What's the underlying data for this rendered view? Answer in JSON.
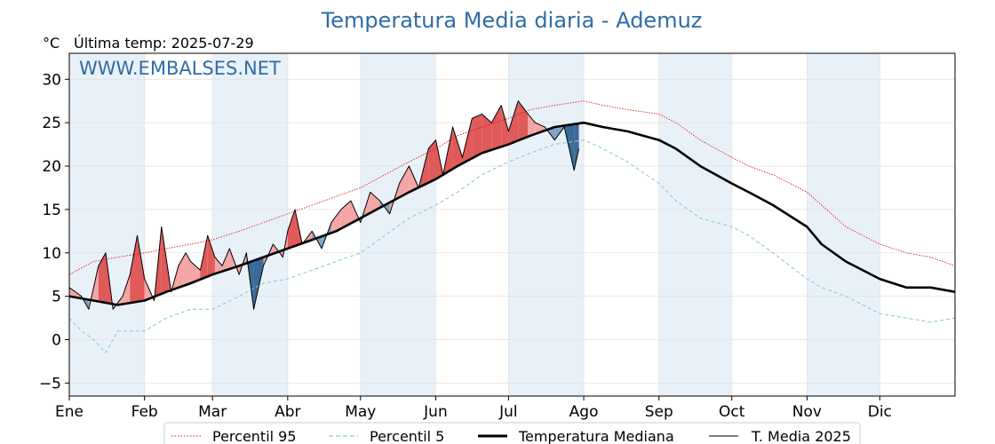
{
  "chart_data": {
    "type": "line",
    "title": "Temperatura Media diaria - Ademuz",
    "unit_label": "°C",
    "subtitle": "Última temp: 2025-07-29",
    "watermark": "WWW.EMBALSES.NET",
    "x_tick_labels": [
      "Ene",
      "Feb",
      "Mar",
      "Abr",
      "May",
      "Jun",
      "Jul",
      "Ago",
      "Sep",
      "Oct",
      "Nov",
      "Dic"
    ],
    "x_tick_days": [
      0,
      31,
      59,
      90,
      120,
      151,
      181,
      212,
      243,
      273,
      304,
      334
    ],
    "x_range_days": [
      0,
      365
    ],
    "y_ticks": [
      -5,
      0,
      5,
      10,
      15,
      20,
      25,
      30
    ],
    "ylim": [
      -6.5,
      33
    ],
    "shaded_months": [
      "Ene",
      "Mar",
      "May",
      "Jul",
      "Sep",
      "Nov"
    ],
    "grid": true,
    "legend_position": "bottom-center",
    "colors": {
      "p95": "#e31a1c",
      "p5": "#8ec9d9",
      "median": "#000000",
      "current": "#000000",
      "above": "#f4a6a6",
      "above_strong": "#e05a5a",
      "below": "#7ea3c6",
      "below_strong": "#3a6a98",
      "month_band": "#e8f1f8"
    },
    "series": [
      {
        "name": "Percentil 95",
        "style": "dotted-thin",
        "x": [
          0,
          10,
          20,
          31,
          40,
          50,
          59,
          70,
          80,
          90,
          100,
          110,
          120,
          130,
          140,
          151,
          160,
          170,
          181,
          190,
          200,
          212,
          220,
          230,
          243,
          250,
          260,
          273,
          280,
          290,
          304,
          310,
          320,
          334,
          345,
          355,
          365
        ],
        "y": [
          7.5,
          9,
          9.5,
          10,
          10.5,
          11,
          11.5,
          12.5,
          13.5,
          14.5,
          15.5,
          16.5,
          17.5,
          19,
          20.5,
          22,
          23.5,
          24.5,
          25.5,
          26.5,
          27,
          27.5,
          27,
          26.5,
          26,
          25,
          23,
          21,
          20,
          19,
          17,
          15.5,
          13,
          11,
          10,
          9.5,
          8.5
        ]
      },
      {
        "name": "Percentil 5",
        "style": "dashed-thin",
        "x": [
          0,
          5,
          10,
          15,
          20,
          31,
          40,
          50,
          59,
          70,
          80,
          90,
          100,
          110,
          120,
          130,
          140,
          151,
          160,
          170,
          181,
          190,
          200,
          212,
          220,
          230,
          243,
          250,
          260,
          273,
          280,
          290,
          304,
          310,
          320,
          334,
          345,
          355,
          365
        ],
        "y": [
          2.5,
          1,
          0,
          -1.5,
          1,
          1,
          2.5,
          3.5,
          3.5,
          5,
          6.5,
          7,
          8,
          9,
          10,
          12,
          14,
          15.5,
          17,
          19,
          20.5,
          21.5,
          22.5,
          23,
          22,
          20.5,
          18,
          16,
          14,
          13,
          12,
          10,
          7,
          6,
          5,
          3,
          2.5,
          2,
          2.5
        ]
      },
      {
        "name": "Temperatura Mediana",
        "style": "solid-thick",
        "x": [
          0,
          10,
          20,
          31,
          40,
          50,
          59,
          70,
          80,
          90,
          100,
          110,
          120,
          130,
          140,
          151,
          160,
          170,
          181,
          190,
          200,
          212,
          220,
          230,
          243,
          250,
          260,
          273,
          280,
          290,
          304,
          310,
          320,
          334,
          345,
          355,
          365
        ],
        "y": [
          5,
          4.5,
          4,
          4.5,
          5.5,
          6.5,
          7.5,
          8.5,
          9.5,
          10.5,
          11.5,
          12.5,
          14,
          15.5,
          17,
          18.5,
          20,
          21.5,
          22.5,
          23.5,
          24.5,
          25,
          24.5,
          24,
          23,
          22,
          20,
          18,
          17,
          15.5,
          13,
          11,
          9,
          7,
          6,
          6,
          5.5
        ]
      },
      {
        "name": "T. Media 2025",
        "style": "solid-thin",
        "x": [
          0,
          5,
          8,
          12,
          15,
          18,
          22,
          25,
          28,
          31,
          35,
          38,
          42,
          45,
          48,
          50,
          54,
          57,
          60,
          63,
          66,
          70,
          73,
          76,
          80,
          84,
          88,
          90,
          93,
          96,
          100,
          104,
          108,
          112,
          116,
          120,
          124,
          128,
          132,
          136,
          140,
          144,
          148,
          151,
          154,
          158,
          162,
          166,
          170,
          174,
          178,
          181,
          185,
          189,
          192,
          196,
          200,
          204,
          208,
          210
        ],
        "y": [
          6,
          5,
          3.5,
          8.5,
          10,
          3.5,
          5,
          7.5,
          12,
          7,
          4.5,
          13,
          5.5,
          8.5,
          10,
          9,
          8,
          12,
          9.5,
          8.5,
          10.5,
          7.5,
          10,
          3.5,
          8.5,
          11,
          9.5,
          12.5,
          15,
          11,
          12.5,
          10.5,
          13.5,
          15,
          16,
          13.5,
          17,
          16,
          14.5,
          18,
          20,
          17.5,
          22,
          23,
          19,
          24.5,
          21,
          25.5,
          26,
          25,
          27,
          24,
          27.5,
          26,
          25,
          24.5,
          23,
          24.5,
          19.5,
          22
        ]
      }
    ],
    "legend": [
      "Percentil 95",
      "Percentil 5",
      "Temperatura Mediana",
      "T. Media 2025"
    ]
  }
}
